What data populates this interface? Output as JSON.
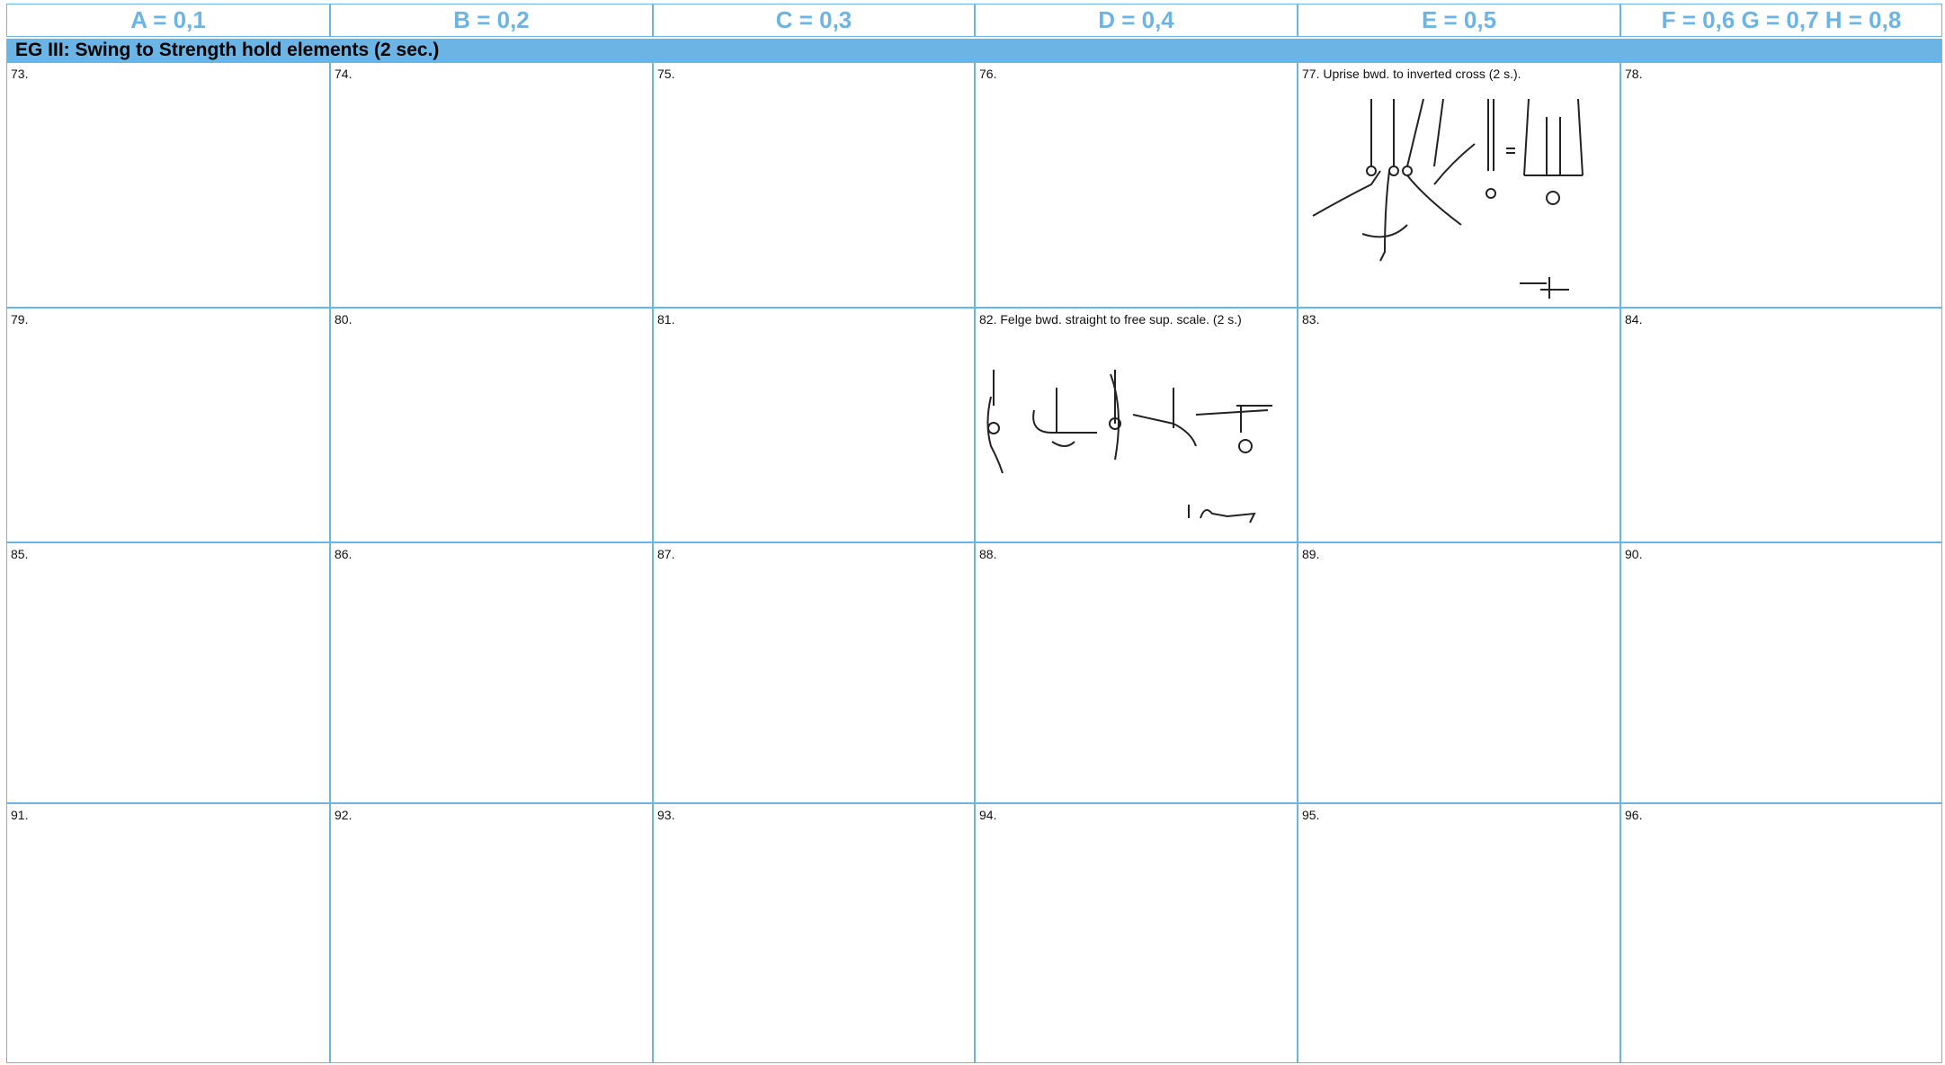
{
  "header": {
    "columns": [
      "A = 0,1",
      "B = 0,2",
      "C = 0,3",
      "D = 0,4",
      "E = 0,5",
      "F = 0,6 G = 0,7 H = 0,8"
    ]
  },
  "section": {
    "title": "EG III: Swing to Strength hold elements (2 sec.)"
  },
  "rows": [
    [
      "73.",
      "74.",
      "75.",
      "76.",
      "77. Uprise bwd. to inverted cross (2 s.).",
      "78."
    ],
    [
      "79.",
      "80.",
      "81.",
      "82. Felge bwd. straight to free sup. scale. (2 s.)",
      "83.",
      "84."
    ],
    [
      "85.",
      "86.",
      "87.",
      "88.",
      "89.",
      "90."
    ],
    [
      "91.",
      "92.",
      "93.",
      "94.",
      "95.",
      "96."
    ]
  ]
}
